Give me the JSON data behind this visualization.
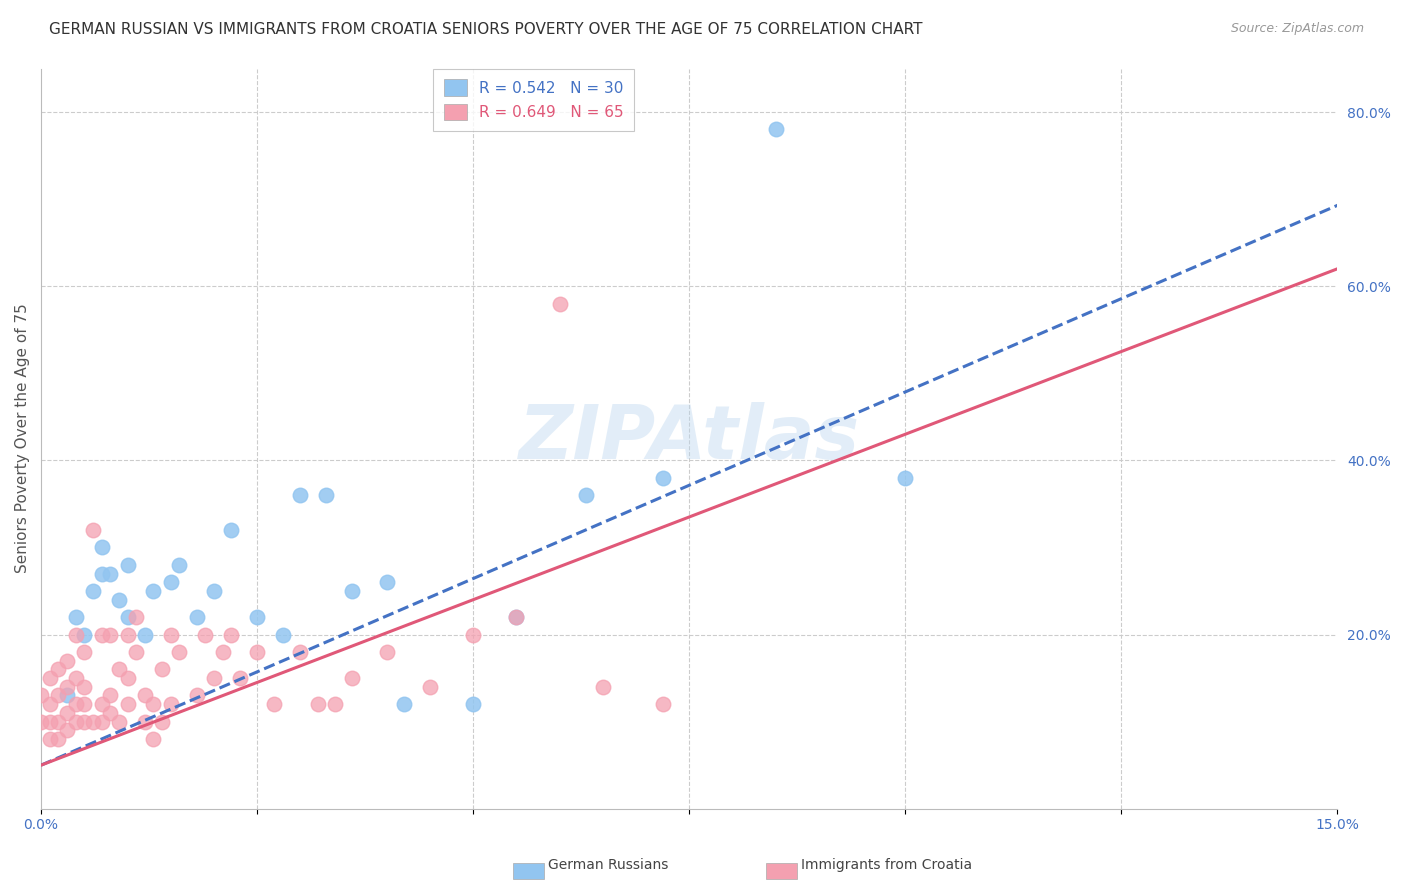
{
  "title": "GERMAN RUSSIAN VS IMMIGRANTS FROM CROATIA SENIORS POVERTY OVER THE AGE OF 75 CORRELATION CHART",
  "source": "Source: ZipAtlas.com",
  "ylabel": "Seniors Poverty Over the Age of 75",
  "xlim": [
    0.0,
    0.15
  ],
  "ylim": [
    0.0,
    0.85
  ],
  "xticks": [
    0.0,
    0.025,
    0.05,
    0.075,
    0.1,
    0.125,
    0.15
  ],
  "xticklabels": [
    "0.0%",
    "",
    "",
    "",
    "",
    "",
    "15.0%"
  ],
  "yticks_right": [
    0.0,
    0.2,
    0.4,
    0.6,
    0.8
  ],
  "ytick_labels_right": [
    "",
    "20.0%",
    "40.0%",
    "60.0%",
    "80.0%"
  ],
  "watermark": "ZIPAtlas",
  "legend_r1": "R = 0.542",
  "legend_n1": "N = 30",
  "legend_r2": "R = 0.649",
  "legend_n2": "N = 65",
  "color_blue": "#92C5F0",
  "color_pink": "#F4A0B0",
  "color_blue_line": "#4472c4",
  "color_pink_line": "#E05878",
  "color_blue_text": "#4472c4",
  "color_pink_text": "#E05878",
  "blue_x": [
    0.003,
    0.004,
    0.005,
    0.006,
    0.007,
    0.007,
    0.008,
    0.009,
    0.01,
    0.01,
    0.012,
    0.013,
    0.015,
    0.016,
    0.018,
    0.02,
    0.022,
    0.025,
    0.028,
    0.03,
    0.033,
    0.036,
    0.04,
    0.042,
    0.05,
    0.055,
    0.063,
    0.072,
    0.085,
    0.1
  ],
  "blue_y": [
    0.13,
    0.22,
    0.2,
    0.25,
    0.27,
    0.3,
    0.27,
    0.24,
    0.22,
    0.28,
    0.2,
    0.25,
    0.26,
    0.28,
    0.22,
    0.25,
    0.32,
    0.22,
    0.2,
    0.36,
    0.36,
    0.25,
    0.26,
    0.12,
    0.12,
    0.22,
    0.36,
    0.38,
    0.78,
    0.38
  ],
  "pink_x": [
    0.0,
    0.0,
    0.001,
    0.001,
    0.001,
    0.001,
    0.002,
    0.002,
    0.002,
    0.002,
    0.003,
    0.003,
    0.003,
    0.003,
    0.004,
    0.004,
    0.004,
    0.004,
    0.005,
    0.005,
    0.005,
    0.005,
    0.006,
    0.006,
    0.007,
    0.007,
    0.007,
    0.008,
    0.008,
    0.008,
    0.009,
    0.009,
    0.01,
    0.01,
    0.01,
    0.011,
    0.011,
    0.012,
    0.012,
    0.013,
    0.013,
    0.014,
    0.014,
    0.015,
    0.015,
    0.016,
    0.018,
    0.019,
    0.02,
    0.021,
    0.022,
    0.023,
    0.025,
    0.027,
    0.03,
    0.032,
    0.034,
    0.036,
    0.04,
    0.045,
    0.05,
    0.055,
    0.06,
    0.065,
    0.072
  ],
  "pink_y": [
    0.1,
    0.13,
    0.08,
    0.1,
    0.12,
    0.15,
    0.08,
    0.1,
    0.13,
    0.16,
    0.09,
    0.11,
    0.14,
    0.17,
    0.1,
    0.12,
    0.15,
    0.2,
    0.1,
    0.12,
    0.14,
    0.18,
    0.1,
    0.32,
    0.1,
    0.12,
    0.2,
    0.11,
    0.13,
    0.2,
    0.1,
    0.16,
    0.12,
    0.15,
    0.2,
    0.18,
    0.22,
    0.1,
    0.13,
    0.08,
    0.12,
    0.1,
    0.16,
    0.12,
    0.2,
    0.18,
    0.13,
    0.2,
    0.15,
    0.18,
    0.2,
    0.15,
    0.18,
    0.12,
    0.18,
    0.12,
    0.12,
    0.15,
    0.18,
    0.14,
    0.2,
    0.22,
    0.58,
    0.14,
    0.12
  ],
  "blue_line_x": [
    0.0,
    0.175
  ],
  "blue_line_y": [
    0.05,
    0.8
  ],
  "pink_line_x": [
    0.0,
    0.15
  ],
  "pink_line_y": [
    0.05,
    0.62
  ],
  "grid_color": "#cccccc",
  "background_color": "#ffffff",
  "title_fontsize": 11,
  "axis_label_fontsize": 11,
  "tick_fontsize": 10,
  "legend_fontsize": 11
}
